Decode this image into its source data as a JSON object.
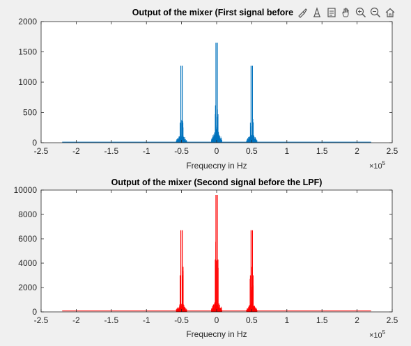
{
  "toolbar": {
    "icons": [
      "brush-icon",
      "data-cursor-icon",
      "restore-view-icon",
      "pan-hand-icon",
      "zoom-in-icon",
      "zoom-out-icon",
      "home-icon"
    ]
  },
  "chart_data": [
    {
      "type": "line",
      "title": "Output of the mixer (First signal before tl",
      "xlabel": "Frequecny in Hz",
      "ylabel": "",
      "x_exponent_label": "×10",
      "x_exponent": "5",
      "xlim": [
        -2.5,
        2.5
      ],
      "ylim": [
        0,
        2000
      ],
      "xticks": [
        "-2.5",
        "-2",
        "-1.5",
        "-1",
        "-0.5",
        "0",
        "0.5",
        "1",
        "1.5",
        "2",
        "2.5"
      ],
      "yticks": [
        "0",
        "500",
        "1000",
        "1500",
        "2000"
      ],
      "color": "#0072bd",
      "grid": false,
      "clusters": [
        {
          "center": -0.5,
          "peak": 1270,
          "side": 330,
          "base": 180
        },
        {
          "center": 0.0,
          "peak": 1650,
          "side": 470,
          "base": 260
        },
        {
          "center": 0.5,
          "peak": 1270,
          "side": 330,
          "base": 180
        }
      ],
      "noise_floor": 10
    },
    {
      "type": "line",
      "title": "Output of the mixer (Second signal before the LPF)",
      "xlabel": "Frequecny in Hz",
      "ylabel": "",
      "x_exponent_label": "×10",
      "x_exponent": "5",
      "xlim": [
        -2.5,
        2.5
      ],
      "ylim": [
        0,
        10000
      ],
      "xticks": [
        "-2.5",
        "-2",
        "-1.5",
        "-1",
        "-0.5",
        "0",
        "0.5",
        "1",
        "1.5",
        "2",
        "2.5"
      ],
      "yticks": [
        "0",
        "2000",
        "4000",
        "6000",
        "8000",
        "10000"
      ],
      "color": "#ff0000",
      "grid": false,
      "clusters": [
        {
          "center": -0.5,
          "peak": 6700,
          "side": 3000,
          "base": 900
        },
        {
          "center": 0.0,
          "peak": 9600,
          "side": 4300,
          "base": 1200
        },
        {
          "center": 0.5,
          "peak": 6700,
          "side": 3000,
          "base": 900
        }
      ],
      "noise_floor": 80
    }
  ]
}
